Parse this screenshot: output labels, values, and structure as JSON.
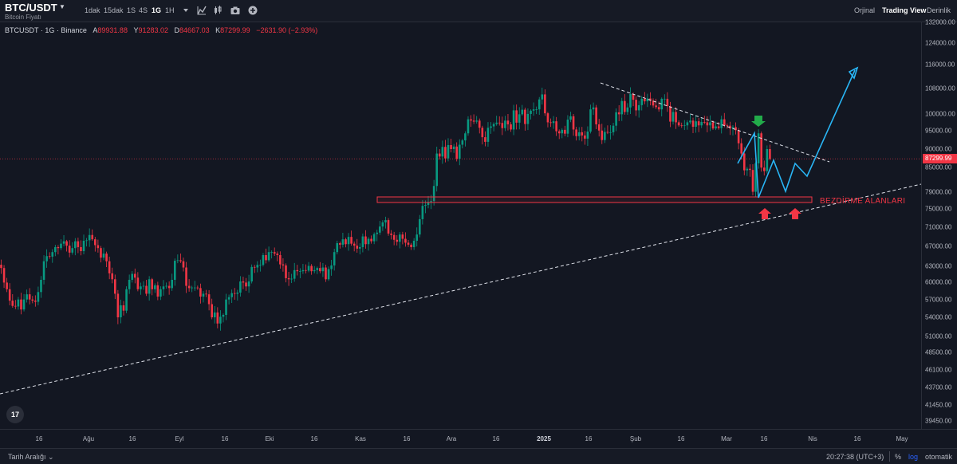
{
  "header": {
    "symbol": "BTC/USDT",
    "subtitle": "Bitcoin Fiyatı",
    "intervals": [
      "1dak",
      "15dak",
      "1S",
      "4S",
      "1G",
      "1H"
    ],
    "active_interval": "1G",
    "tools": [
      "chevron-down-icon",
      "indicators-icon",
      "candles-icon",
      "camera-icon",
      "plus-icon"
    ],
    "views": [
      "Orjinal",
      "Trading View",
      "Derinlik"
    ],
    "active_view": "Trading View"
  },
  "legend": {
    "symbol": "BTCUSDT · 1G · Binance",
    "open_label": "A",
    "open": "89931.88",
    "high_label": "Y",
    "high": "91283.02",
    "low_label": "D",
    "low": "84667.03",
    "close_label": "K",
    "close": "87299.99",
    "change": "−2631.90 (−2.93%)"
  },
  "colors": {
    "background": "#131722",
    "up": "#089981",
    "down": "#f23645",
    "projection": "#29b6f6",
    "arrow_up": "#f23645",
    "arrow_down": "#22ab4a",
    "trendline": "#e0e3eb"
  },
  "annotations": {
    "zone_label": "BEZDİRME ALANLARI",
    "logo": "17"
  },
  "chart_data": {
    "type": "candlestick",
    "scale": "log",
    "current_price": 87299.99,
    "current_price_label": "87299.99",
    "price_ticks": [
      "132000.00",
      "124000.00",
      "116000.00",
      "108000.00",
      "100000.00",
      "95000.00",
      "90000.00",
      "85000.00",
      "79000.00",
      "75000.00",
      "71000.00",
      "67000.00",
      "63000.00",
      "60000.00",
      "57000.00",
      "54000.00",
      "51000.00",
      "48500.00",
      "46100.00",
      "43700.00",
      "41450.00",
      "39450.00"
    ],
    "time_ticks": [
      "16",
      "Ağu",
      "16",
      "Eyl",
      "16",
      "Eki",
      "16",
      "Kas",
      "16",
      "Ara",
      "16",
      "2025",
      "16",
      "Şub",
      "16",
      "Mar",
      "16",
      "Nis",
      "16",
      "May"
    ],
    "major_time_ticks": [
      "2025"
    ],
    "support_zone": {
      "low": 77000,
      "high": 78200,
      "label": "BEZDİRME ALANLARI"
    },
    "trend_start_date": "2024-07-05",
    "last_candle_date": "2025-03-09",
    "closes": [
      62700,
      60000,
      58800,
      56800,
      55900,
      55800,
      57000,
      55300,
      57000,
      57900,
      57000,
      56800,
      56600,
      58300,
      60500,
      64000,
      65000,
      64900,
      65800,
      66800,
      66600,
      67500,
      68000,
      67100,
      65700,
      66600,
      68000,
      66800,
      66000,
      68100,
      68200,
      69300,
      68400,
      67200,
      66600,
      64700,
      65500,
      64000,
      61700,
      60600,
      58000,
      54000,
      56000,
      55100,
      58800,
      60500,
      61600,
      60900,
      58800,
      59300,
      59400,
      58000,
      60600,
      58800,
      59500,
      57500,
      58800,
      59300,
      59400,
      59000,
      60500,
      64100,
      64200,
      64000,
      62800,
      59400,
      59000,
      59100,
      59100,
      59000,
      57500,
      58000,
      57900,
      56200,
      54000,
      54800,
      53000,
      54100,
      54400,
      57000,
      57400,
      58100,
      58000,
      58200,
      60200,
      60000,
      59300,
      60200,
      62900,
      62800,
      63300,
      63300,
      65200,
      64200,
      65800,
      65800,
      65500,
      65200,
      63400,
      63200,
      60800,
      60600,
      60700,
      62300,
      62100,
      62100,
      62300,
      62200,
      63100,
      62100,
      62300,
      62700,
      62100,
      62800,
      60600,
      62500,
      63200,
      65800,
      67600,
      67300,
      68400,
      67400,
      68900,
      67500,
      67100,
      66500,
      66800,
      69000,
      67400,
      68500,
      68000,
      69500,
      69800,
      71100,
      72000,
      72500,
      69600,
      69300,
      68300,
      67900,
      69400,
      68500,
      67700,
      67300,
      66800,
      68100,
      69400,
      72700,
      75700,
      75900,
      76600,
      76800,
      80400,
      88700,
      87900,
      90500,
      87400,
      91000,
      89900,
      90600,
      87300,
      91100,
      92300,
      94300,
      98400,
      98000,
      97700,
      98000,
      95900,
      93200,
      91900,
      95900,
      96300,
      97000,
      97400,
      97300,
      95800,
      98000,
      96900,
      95400,
      101100,
      97400,
      99900,
      101300,
      97000,
      100000,
      101000,
      101400,
      101400,
      104500,
      106100,
      100200,
      97500,
      97300,
      97800,
      94900,
      94300,
      95300,
      94200,
      98300,
      99300,
      95400,
      93500,
      94600,
      93700,
      92800,
      94800,
      101400,
      102000,
      96900,
      95100,
      92400,
      94700,
      94500,
      94600,
      96500,
      100500,
      99900,
      104000,
      100600,
      102000,
      106200,
      104400,
      101100,
      102700,
      104700,
      103900,
      104800,
      104100,
      102600,
      102100,
      101400,
      104700,
      104700,
      102400,
      97700,
      100600,
      97500,
      96600,
      96500,
      96600,
      97500,
      98000,
      96200,
      97800,
      96600,
      97600,
      97500,
      96600,
      97500,
      95700,
      96300,
      95800,
      98400,
      96600,
      96500,
      95700,
      96100,
      95200,
      91500,
      88700,
      84300,
      84700,
      84400,
      79000,
      86100,
      94300,
      85000,
      84100,
      89900,
      87300
    ]
  }
}
